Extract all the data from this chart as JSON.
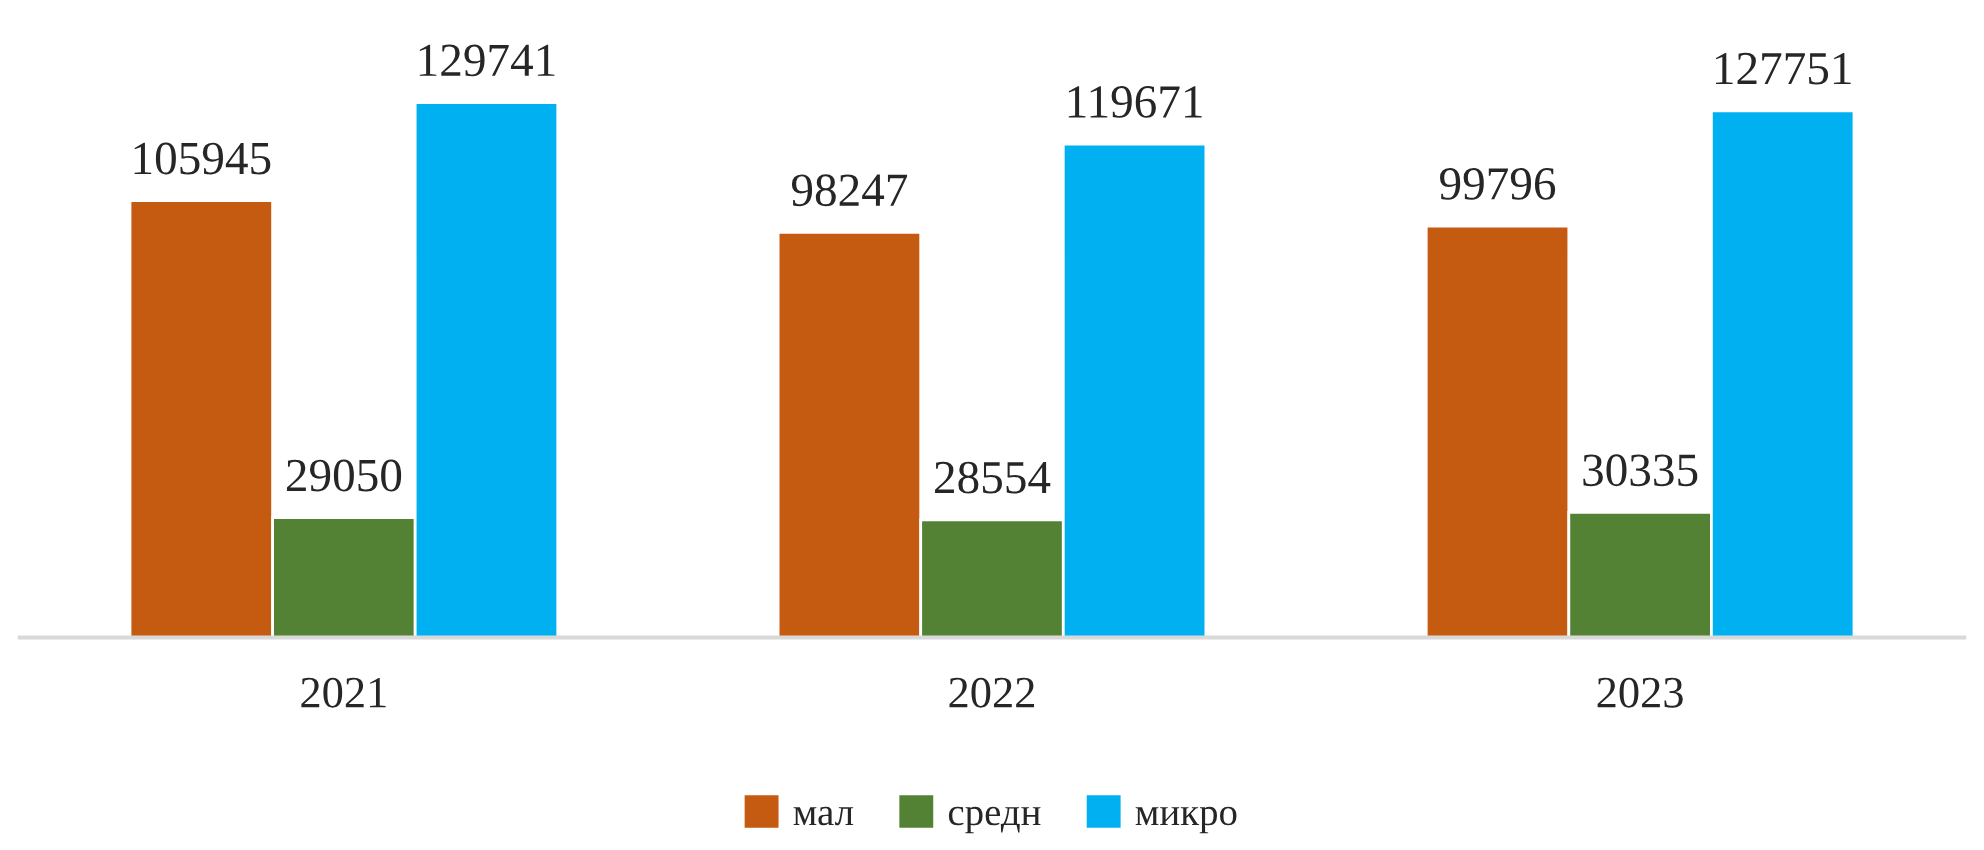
{
  "chart_data": {
    "type": "bar",
    "categories": [
      "2021",
      "2022",
      "2023"
    ],
    "series": [
      {
        "name": "мал",
        "color": "#c55a11",
        "values": [
          105945,
          98247,
          99796
        ]
      },
      {
        "name": "средн",
        "color": "#548235",
        "values": [
          29050,
          28554,
          30335
        ]
      },
      {
        "name": "микро",
        "color": "#00b0f0",
        "values": [
          129741,
          119671,
          127751
        ]
      }
    ],
    "data_labels": true,
    "legend": "bottom",
    "grid": false
  }
}
